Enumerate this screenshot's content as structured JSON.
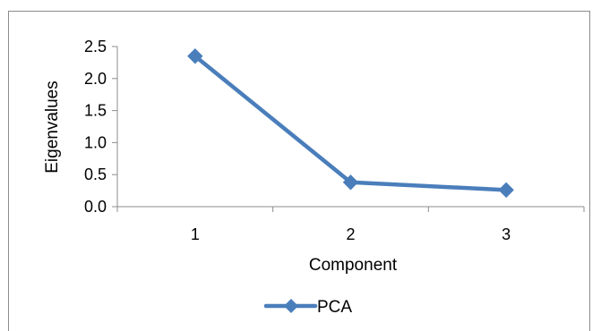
{
  "chart_data": {
    "type": "line",
    "x": [
      1,
      2,
      3
    ],
    "categories": [
      "1",
      "2",
      "3"
    ],
    "series": [
      {
        "name": "PCA",
        "values": [
          2.35,
          0.38,
          0.26
        ]
      }
    ],
    "xlabel": "Component",
    "ylabel": "Eigenvalues",
    "ylim": [
      0.0,
      2.5
    ],
    "yticks": [
      "0.0",
      "0.5",
      "1.0",
      "1.5",
      "2.0",
      "2.5"
    ],
    "grid": false,
    "legend_position": "bottom",
    "marker": "diamond",
    "series_color": "#4a7ebb"
  }
}
